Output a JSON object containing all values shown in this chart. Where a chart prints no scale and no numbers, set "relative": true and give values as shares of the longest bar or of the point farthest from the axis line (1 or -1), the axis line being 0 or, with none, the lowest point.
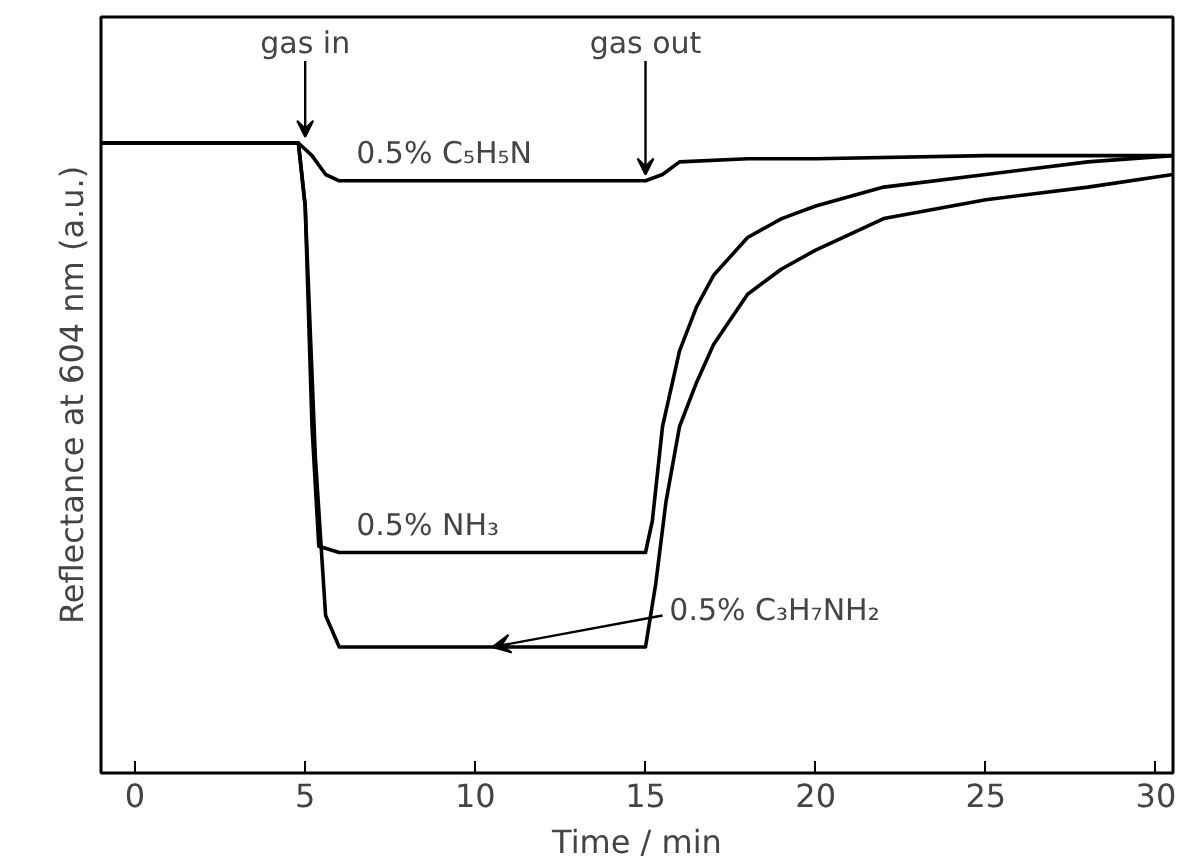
{
  "chart_data": {
    "type": "line",
    "relative": true,
    "xlabel": "Time / min",
    "ylabel": "Reflectance at 604 nm (a.u.)",
    "xlim": [
      -1,
      30.5
    ],
    "xticks": [
      0,
      5,
      10,
      15,
      20,
      25,
      30
    ],
    "grid": false,
    "marker": "none",
    "line_style": "solid",
    "annotations": [
      {
        "text": "gas in",
        "x": 5,
        "y": 1.0
      },
      {
        "text": "gas out",
        "x": 15,
        "y": 0.94
      }
    ],
    "series": [
      {
        "name": "0.5% C₅H₅N",
        "color": "#000000",
        "x": [
          -1,
          4.8,
          5.2,
          5.6,
          6,
          10,
          15,
          15.5,
          16,
          18,
          20,
          25,
          30.5
        ],
        "values": [
          1.0,
          1.0,
          0.98,
          0.95,
          0.94,
          0.94,
          0.94,
          0.95,
          0.97,
          0.975,
          0.975,
          0.98,
          0.98
        ]
      },
      {
        "name": "0.5% NH₃",
        "color": "#000000",
        "x": [
          -1,
          4.8,
          5,
          5.2,
          5.4,
          6,
          10,
          15,
          15.2,
          15.5,
          16,
          16.5,
          17,
          18,
          19,
          20,
          22,
          25,
          28,
          30.5
        ],
        "values": [
          1.0,
          1.0,
          0.9,
          0.55,
          0.36,
          0.35,
          0.35,
          0.35,
          0.4,
          0.55,
          0.67,
          0.74,
          0.79,
          0.85,
          0.88,
          0.9,
          0.93,
          0.95,
          0.97,
          0.98
        ]
      },
      {
        "name": "0.5% C₃H₇NH₂",
        "color": "#000000",
        "x": [
          -1,
          4.8,
          5,
          5.3,
          5.6,
          6,
          10,
          15,
          15.3,
          15.6,
          16,
          16.5,
          17,
          18,
          19,
          20,
          22,
          25,
          28,
          30.5
        ],
        "values": [
          1.0,
          1.0,
          0.9,
          0.5,
          0.25,
          0.2,
          0.2,
          0.2,
          0.3,
          0.43,
          0.55,
          0.62,
          0.68,
          0.76,
          0.8,
          0.83,
          0.88,
          0.91,
          0.93,
          0.95
        ]
      }
    ]
  }
}
